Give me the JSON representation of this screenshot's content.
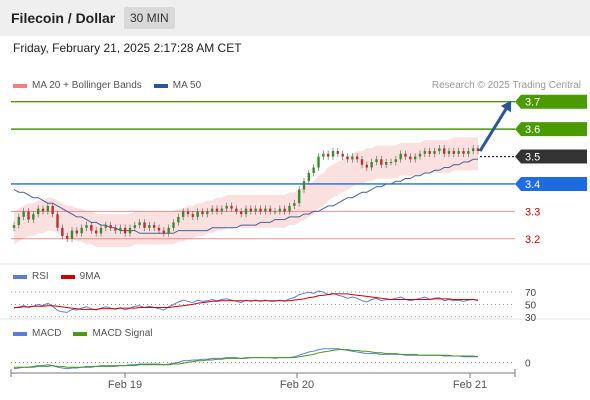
{
  "header": {
    "title": "Filecoin / Dollar",
    "interval": "30 MIN"
  },
  "timestamp": "Friday, February 21, 2025 2:17:28 AM CET",
  "credit": "Research © 2025 Trading Central",
  "legends": {
    "main": [
      {
        "label": "MA 20 + Bollinger Bands",
        "color": "#f08080"
      },
      {
        "label": "MA 50",
        "color": "#2a5597"
      }
    ],
    "rsi": [
      {
        "label": "RSI",
        "color": "#5b7fd6"
      },
      {
        "label": "9MA",
        "color": "#d00000"
      }
    ],
    "macd": [
      {
        "label": "MACD",
        "color": "#5b7fd6"
      },
      {
        "label": "MACD Signal",
        "color": "#4a9a1a"
      }
    ]
  },
  "chart_data": [
    {
      "type": "candlestick",
      "title": "Filecoin / Dollar",
      "x_ticks": [
        "Feb 19",
        "Feb 20",
        "Feb 21"
      ],
      "ylim": [
        3.13,
        3.75
      ],
      "levels": [
        {
          "value": 3.7,
          "label": "3.7",
          "role": "target",
          "color": "#4a9a00",
          "boxed": true
        },
        {
          "value": 3.6,
          "label": "3.6",
          "role": "target",
          "color": "#4a9a00",
          "boxed": true
        },
        {
          "value": 3.5,
          "label": "3.5",
          "role": "last-price",
          "color": "#333333",
          "boxed": true
        },
        {
          "value": 3.4,
          "label": "3.4",
          "role": "pivot",
          "color": "#1f6be0",
          "boxed": true
        },
        {
          "value": 3.3,
          "label": "3.3",
          "role": "support",
          "color": "#e06666",
          "boxed": false
        },
        {
          "value": 3.2,
          "label": "3.2",
          "role": "support",
          "color": "#e06666",
          "boxed": false
        }
      ],
      "close": [
        3.25,
        3.28,
        3.3,
        3.27,
        3.29,
        3.31,
        3.3,
        3.32,
        3.29,
        3.24,
        3.21,
        3.2,
        3.23,
        3.22,
        3.24,
        3.25,
        3.23,
        3.22,
        3.24,
        3.25,
        3.24,
        3.23,
        3.24,
        3.22,
        3.24,
        3.25,
        3.26,
        3.24,
        3.25,
        3.24,
        3.23,
        3.22,
        3.24,
        3.26,
        3.28,
        3.3,
        3.29,
        3.28,
        3.3,
        3.29,
        3.3,
        3.31,
        3.3,
        3.31,
        3.32,
        3.31,
        3.3,
        3.29,
        3.31,
        3.3,
        3.31,
        3.3,
        3.31,
        3.3,
        3.3,
        3.31,
        3.3,
        3.32,
        3.33,
        3.38,
        3.41,
        3.44,
        3.46,
        3.5,
        3.51,
        3.5,
        3.52,
        3.51,
        3.5,
        3.49,
        3.5,
        3.49,
        3.47,
        3.46,
        3.48,
        3.49,
        3.47,
        3.48,
        3.48,
        3.49,
        3.51,
        3.5,
        3.49,
        3.5,
        3.51,
        3.52,
        3.51,
        3.52,
        3.53,
        3.51,
        3.52,
        3.51,
        3.52,
        3.51,
        3.52,
        3.53,
        3.52
      ],
      "ma20": [
        3.24,
        3.25,
        3.26,
        3.27,
        3.27,
        3.28,
        3.28,
        3.29,
        3.29,
        3.28,
        3.27,
        3.26,
        3.26,
        3.25,
        3.25,
        3.24,
        3.24,
        3.23,
        3.23,
        3.23,
        3.23,
        3.23,
        3.23,
        3.23,
        3.23,
        3.24,
        3.24,
        3.24,
        3.24,
        3.24,
        3.24,
        3.24,
        3.24,
        3.24,
        3.25,
        3.25,
        3.26,
        3.26,
        3.27,
        3.27,
        3.28,
        3.28,
        3.29,
        3.29,
        3.3,
        3.3,
        3.3,
        3.3,
        3.3,
        3.3,
        3.3,
        3.3,
        3.3,
        3.3,
        3.3,
        3.3,
        3.3,
        3.31,
        3.31,
        3.32,
        3.33,
        3.34,
        3.35,
        3.37,
        3.38,
        3.4,
        3.41,
        3.42,
        3.43,
        3.44,
        3.45,
        3.46,
        3.46,
        3.47,
        3.47,
        3.48,
        3.48,
        3.48,
        3.48,
        3.48,
        3.49,
        3.49,
        3.49,
        3.49,
        3.49,
        3.5,
        3.5,
        3.5,
        3.5,
        3.5,
        3.5,
        3.51,
        3.51,
        3.51,
        3.51,
        3.51,
        3.51
      ],
      "ma50": [
        3.38,
        3.37,
        3.37,
        3.36,
        3.35,
        3.35,
        3.34,
        3.33,
        3.33,
        3.32,
        3.31,
        3.3,
        3.29,
        3.28,
        3.28,
        3.27,
        3.26,
        3.26,
        3.25,
        3.25,
        3.24,
        3.24,
        3.23,
        3.23,
        3.23,
        3.23,
        3.22,
        3.22,
        3.22,
        3.22,
        3.22,
        3.22,
        3.22,
        3.22,
        3.23,
        3.23,
        3.23,
        3.23,
        3.23,
        3.23,
        3.23,
        3.24,
        3.24,
        3.24,
        3.24,
        3.24,
        3.24,
        3.25,
        3.25,
        3.25,
        3.25,
        3.26,
        3.26,
        3.26,
        3.27,
        3.27,
        3.27,
        3.28,
        3.28,
        3.28,
        3.29,
        3.29,
        3.3,
        3.3,
        3.31,
        3.32,
        3.32,
        3.33,
        3.34,
        3.35,
        3.35,
        3.36,
        3.37,
        3.37,
        3.38,
        3.39,
        3.39,
        3.4,
        3.4,
        3.41,
        3.41,
        3.42,
        3.42,
        3.43,
        3.43,
        3.44,
        3.44,
        3.45,
        3.45,
        3.46,
        3.46,
        3.47,
        3.47,
        3.48,
        3.48,
        3.49,
        3.49
      ],
      "bollinger_width": 0.06
    },
    {
      "type": "line",
      "title": "RSI",
      "ylim": [
        28,
        75
      ],
      "y_ticks": [
        70,
        50,
        30
      ],
      "series": [
        {
          "name": "RSI",
          "values": [
            44,
            46,
            48,
            45,
            47,
            50,
            48,
            52,
            47,
            40,
            38,
            37,
            42,
            41,
            44,
            46,
            43,
            41,
            44,
            46,
            44,
            42,
            45,
            41,
            44,
            47,
            48,
            45,
            47,
            45,
            43,
            41,
            46,
            50,
            54,
            57,
            55,
            53,
            57,
            55,
            56,
            58,
            56,
            58,
            59,
            57,
            55,
            53,
            57,
            55,
            57,
            55,
            57,
            55,
            55,
            57,
            55,
            59,
            61,
            66,
            68,
            70,
            68,
            72,
            70,
            66,
            68,
            65,
            63,
            60,
            62,
            60,
            56,
            54,
            58,
            60,
            56,
            58,
            58,
            60,
            62,
            58,
            56,
            58,
            60,
            62,
            58,
            60,
            61,
            56,
            58,
            56,
            57,
            55,
            57,
            58,
            56
          ]
        },
        {
          "name": "9MA",
          "values": [
            45,
            45,
            46,
            46,
            47,
            47,
            47,
            48,
            48,
            47,
            46,
            45,
            44,
            43,
            42,
            42,
            42,
            42,
            43,
            43,
            43,
            43,
            44,
            44,
            44,
            44,
            45,
            45,
            45,
            45,
            45,
            45,
            45,
            46,
            47,
            48,
            49,
            50,
            52,
            53,
            54,
            55,
            55,
            56,
            56,
            56,
            56,
            56,
            56,
            56,
            56,
            56,
            56,
            56,
            56,
            56,
            56,
            56,
            57,
            58,
            59,
            61,
            62,
            64,
            65,
            66,
            67,
            67,
            67,
            67,
            66,
            65,
            64,
            63,
            62,
            61,
            60,
            59,
            58,
            58,
            58,
            58,
            58,
            58,
            58,
            58,
            58,
            59,
            59,
            59,
            59,
            58,
            58,
            58,
            58,
            58,
            57
          ]
        }
      ]
    },
    {
      "type": "line",
      "title": "MACD",
      "ylim": [
        -0.012,
        0.028
      ],
      "y_ticks": [
        0
      ],
      "x_ticks": [
        "Feb 19",
        "Feb 20",
        "Feb 21"
      ],
      "series": [
        {
          "name": "MACD",
          "values": [
            -0.008,
            -0.007,
            -0.006,
            -0.006,
            -0.005,
            -0.004,
            -0.004,
            -0.003,
            -0.004,
            -0.006,
            -0.007,
            -0.008,
            -0.007,
            -0.007,
            -0.006,
            -0.005,
            -0.005,
            -0.005,
            -0.004,
            -0.004,
            -0.004,
            -0.004,
            -0.004,
            -0.004,
            -0.003,
            -0.003,
            -0.002,
            -0.002,
            -0.002,
            -0.002,
            -0.002,
            -0.003,
            -0.002,
            -0.001,
            0.0,
            0.002,
            0.002,
            0.003,
            0.003,
            0.004,
            0.004,
            0.005,
            0.005,
            0.005,
            0.006,
            0.006,
            0.006,
            0.005,
            0.006,
            0.006,
            0.006,
            0.006,
            0.006,
            0.006,
            0.005,
            0.006,
            0.006,
            0.006,
            0.007,
            0.009,
            0.011,
            0.013,
            0.014,
            0.016,
            0.017,
            0.017,
            0.017,
            0.017,
            0.016,
            0.015,
            0.014,
            0.013,
            0.012,
            0.011,
            0.011,
            0.011,
            0.01,
            0.01,
            0.01,
            0.01,
            0.01,
            0.009,
            0.009,
            0.009,
            0.009,
            0.009,
            0.009,
            0.009,
            0.009,
            0.008,
            0.008,
            0.008,
            0.008,
            0.007,
            0.007,
            0.007,
            0.007
          ]
        },
        {
          "name": "MACD Signal",
          "values": [
            -0.006,
            -0.006,
            -0.006,
            -0.006,
            -0.006,
            -0.005,
            -0.005,
            -0.005,
            -0.004,
            -0.005,
            -0.005,
            -0.006,
            -0.006,
            -0.006,
            -0.006,
            -0.006,
            -0.006,
            -0.005,
            -0.005,
            -0.005,
            -0.005,
            -0.005,
            -0.004,
            -0.004,
            -0.004,
            -0.004,
            -0.003,
            -0.003,
            -0.003,
            -0.003,
            -0.003,
            -0.003,
            -0.003,
            -0.002,
            -0.002,
            -0.001,
            0.0,
            0.001,
            0.002,
            0.002,
            0.003,
            0.003,
            0.004,
            0.004,
            0.005,
            0.005,
            0.005,
            0.005,
            0.005,
            0.006,
            0.006,
            0.006,
            0.006,
            0.006,
            0.006,
            0.006,
            0.006,
            0.006,
            0.006,
            0.007,
            0.008,
            0.009,
            0.01,
            0.012,
            0.013,
            0.014,
            0.015,
            0.016,
            0.016,
            0.016,
            0.015,
            0.015,
            0.014,
            0.014,
            0.013,
            0.012,
            0.012,
            0.011,
            0.011,
            0.011,
            0.01,
            0.01,
            0.01,
            0.01,
            0.009,
            0.009,
            0.009,
            0.009,
            0.009,
            0.009,
            0.009,
            0.008,
            0.008,
            0.008,
            0.008,
            0.008,
            0.007
          ]
        }
      ]
    }
  ]
}
